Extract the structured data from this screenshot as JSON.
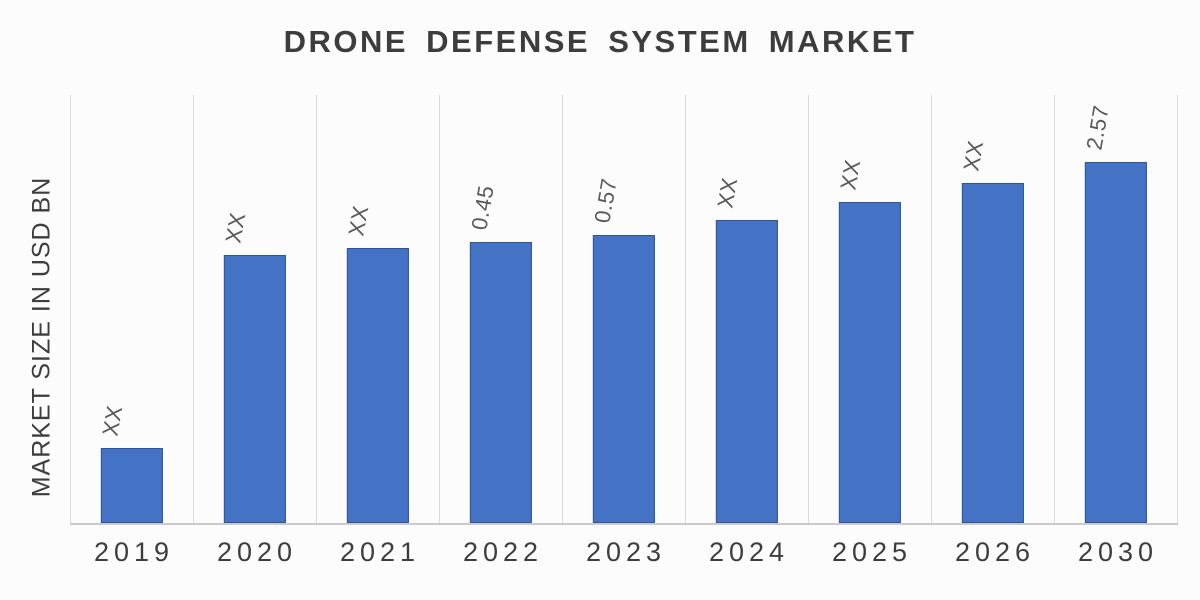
{
  "title": "DRONE DEFENSE SYSTEM MARKET",
  "y_axis_label": "MARKET SIZE IN USD BN",
  "colors": {
    "bar_fill": "#4472C4",
    "bar_border": "#2F5597",
    "gridline": "#D9D9D9",
    "baseline": "#CBC9C9",
    "title_text": "#3D3D3D",
    "axis_text": "#3D3D3D",
    "data_label_text": "#595959",
    "background": "#FCFCFC"
  },
  "chart_data": {
    "type": "bar",
    "title": "DRONE DEFENSE SYSTEM MARKET",
    "ylabel": "MARKET SIZE IN USD BN",
    "xlabel": "",
    "unit": "USD BN",
    "legend_position": "none",
    "grid": "vertical-only",
    "categories": [
      "2019",
      "2020",
      "2021",
      "2022",
      "2023",
      "2024",
      "2025",
      "2026",
      "2030"
    ],
    "values": [
      "XX",
      "XX",
      "XX",
      "0.45",
      "0.57",
      "XX",
      "XX",
      "XX",
      "2.57"
    ],
    "known_values_usd_bn": {
      "2022": 0.45,
      "2023": 0.57,
      "2030": 2.57
    },
    "bar_height_pct": [
      17.5,
      62.6,
      64.3,
      65.7,
      67.3,
      70.8,
      75.0,
      79.4,
      84.3
    ],
    "data_label_rotation_deg": -80,
    "ylim_note": "no numeric y-axis ticks shown"
  }
}
